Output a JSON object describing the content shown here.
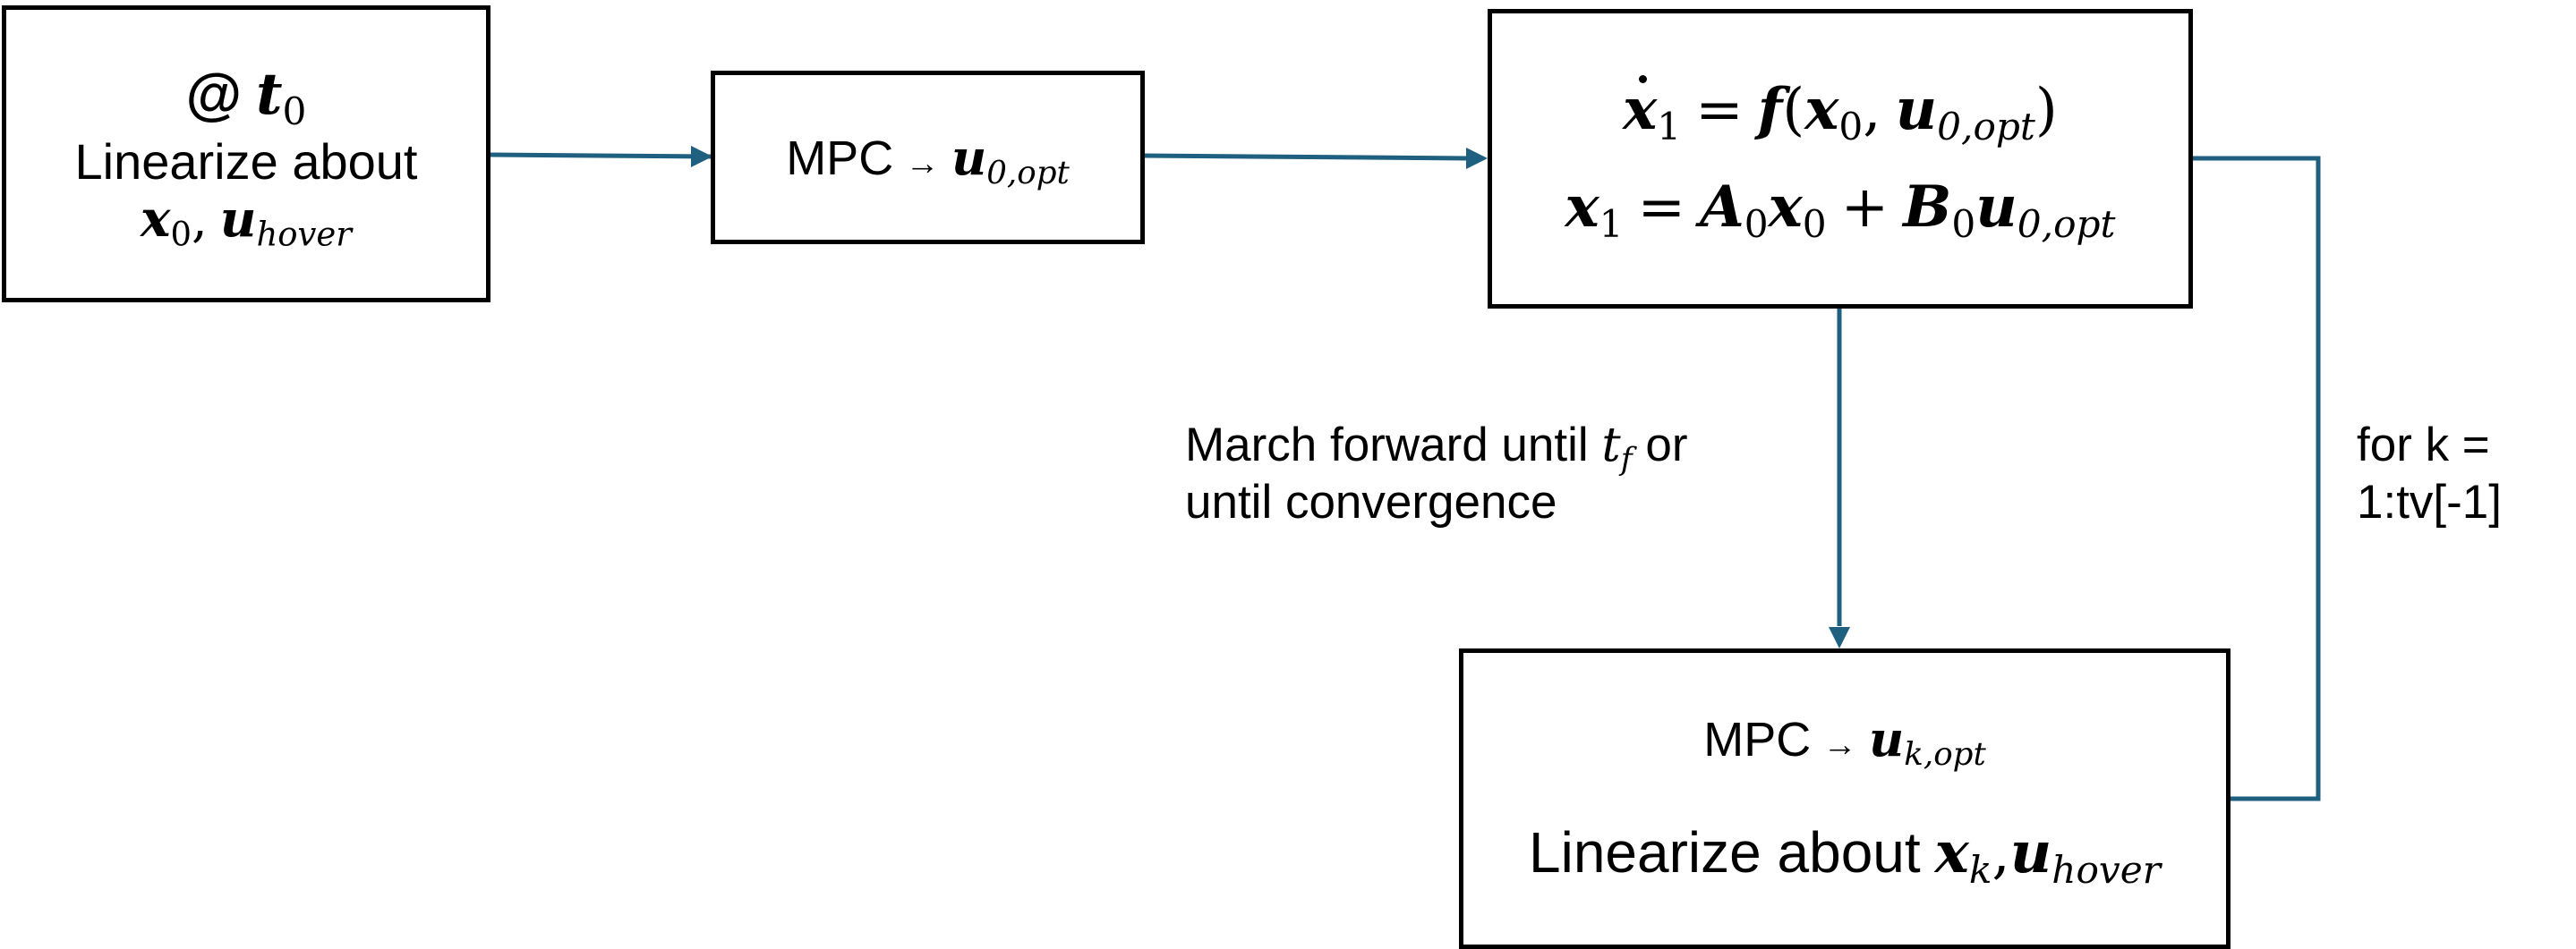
{
  "colors": {
    "arrow": "#1f5f80",
    "box_border": "#000000",
    "text": "#000000",
    "background": "#ffffff"
  },
  "start_box": {
    "at_symbol": "@",
    "time_var": "t",
    "time_sub": "0",
    "linearize_text": "Linearize about",
    "x_var": "x",
    "x_sub": "0",
    "comma": ",",
    "u_var": "u",
    "u_sub": "hover"
  },
  "mpc_box_first": {
    "mpc_label": "MPC",
    "arrow_glyph": "→",
    "u_var": "u",
    "u_sub": "0,opt"
  },
  "state_box": {
    "eq1": {
      "lhs_var": "x",
      "lhs_sub": "1",
      "equals": "=",
      "func": "f",
      "open": "(",
      "arg1_var": "x",
      "arg1_sub": "0",
      "comma": ",",
      "arg2_var": "u",
      "arg2_sub": "0,opt",
      "close": ")"
    },
    "eq2": {
      "lhs_var": "x",
      "lhs_sub": "1",
      "equals": "=",
      "a_var": "A",
      "a_sub": "0",
      "x_var": "x",
      "x_sub": "0",
      "plus": "+",
      "b_var": "B",
      "b_sub": "0",
      "u_var": "u",
      "u_sub": "0,opt"
    }
  },
  "mpc_box_loop": {
    "mpc_label": "MPC",
    "arrow_glyph": "→",
    "u_var": "u",
    "u_sub": "k,opt",
    "linearize_text": "Linearize about",
    "x_var": "x",
    "x_sub": "k",
    "comma": ",",
    "u2_var": "u",
    "u2_sub": "hover"
  },
  "march_label": {
    "line1_prefix": "March forward until",
    "tf_var": "t",
    "tf_sub": "f",
    "line1_suffix": "or",
    "line2": "until convergence"
  },
  "loop_label": {
    "line1": "for k =",
    "line2": "1:tv[-1]"
  }
}
